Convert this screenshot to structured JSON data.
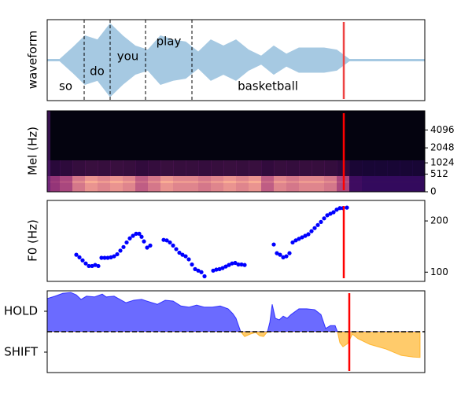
{
  "chart_data": [
    {
      "type": "waveform",
      "ylabel": "waveform",
      "xlim": [
        0,
        480
      ],
      "ylim": [
        -1,
        1
      ],
      "color": "#a6c9e2",
      "x": [
        0,
        16,
        32,
        48,
        64,
        80,
        96,
        112,
        128,
        144,
        160,
        176,
        192,
        208,
        224,
        240,
        256,
        272,
        288,
        304,
        320,
        336,
        352,
        368,
        384,
        400,
        416,
        432,
        448,
        464,
        480
      ],
      "values": [
        0.02,
        0.02,
        0.3,
        0.6,
        0.5,
        0.9,
        0.6,
        0.35,
        0.25,
        0.6,
        0.5,
        0.45,
        0.2,
        0.5,
        0.35,
        0.5,
        0.25,
        0.1,
        0.35,
        0.15,
        0.3,
        0.3,
        0.3,
        0.25,
        0.02,
        0.02,
        0.02,
        0.02,
        0.02,
        0.02,
        0.02
      ],
      "words": [
        {
          "text": "so",
          "start": 0,
          "end": 47
        },
        {
          "text": "do",
          "start": 47,
          "end": 80
        },
        {
          "text": "you",
          "start": 80,
          "end": 125
        },
        {
          "text": "play",
          "start": 125,
          "end": 184
        },
        {
          "text": "basketball",
          "start": 184,
          "end": 377
        }
      ],
      "cursor": 377,
      "cursor_color": "#ee4444"
    },
    {
      "type": "spectrogram",
      "ylabel": "Mel (Hz)",
      "xlim": [
        0,
        480
      ],
      "ylim": [
        0,
        8000
      ],
      "yscale": "mel",
      "yticks": [
        0,
        512,
        1024,
        2048,
        4096
      ],
      "x": [
        0,
        16,
        32,
        48,
        64,
        80,
        96,
        112,
        128,
        144,
        160,
        176,
        192,
        208,
        224,
        240,
        256,
        272,
        288,
        304,
        320,
        336,
        352,
        368,
        384,
        400,
        416,
        432,
        448,
        464
      ],
      "values": [
        0.5,
        0.6,
        0.8,
        0.9,
        0.85,
        0.9,
        0.85,
        0.7,
        0.8,
        0.9,
        0.85,
        0.85,
        0.8,
        0.85,
        0.9,
        0.85,
        0.9,
        0.7,
        0.85,
        0.8,
        0.85,
        0.85,
        0.8,
        0.6,
        0.1,
        0.05,
        0.05,
        0.05,
        0.05,
        0.05
      ],
      "cursor": 377,
      "cursor_color": "#ff0000"
    },
    {
      "type": "scatter",
      "ylabel": "F0 (Hz)",
      "xlim": [
        0,
        480
      ],
      "ylim": [
        82,
        240
      ],
      "yticks": [
        100,
        200
      ],
      "color": "#0000ff",
      "x": [
        37,
        41,
        45,
        49,
        53,
        57,
        61,
        65,
        69,
        73,
        77,
        81,
        85,
        89,
        93,
        97,
        101,
        105,
        109,
        113,
        117,
        120,
        123,
        127,
        131,
        148,
        152,
        156,
        160,
        164,
        168,
        172,
        176,
        180,
        184,
        188,
        192,
        196,
        200,
        211,
        215,
        219,
        223,
        227,
        231,
        235,
        239,
        243,
        247,
        251,
        288,
        292,
        296,
        300,
        304,
        308,
        312,
        316,
        320,
        324,
        328,
        332,
        336,
        340,
        344,
        348,
        352,
        356,
        360,
        364,
        368,
        372,
        376,
        381
      ],
      "values": [
        134,
        129,
        123,
        117,
        112,
        112,
        114,
        112,
        128,
        128,
        128,
        129,
        131,
        135,
        142,
        149,
        158,
        166,
        171,
        175,
        175,
        169,
        160,
        148,
        152,
        163,
        162,
        158,
        152,
        145,
        138,
        134,
        131,
        125,
        115,
        106,
        103,
        100,
        92,
        103,
        105,
        106,
        108,
        111,
        114,
        117,
        118,
        115,
        115,
        114,
        154,
        137,
        134,
        129,
        131,
        137,
        158,
        162,
        165,
        168,
        171,
        174,
        180,
        186,
        192,
        198,
        205,
        211,
        214,
        217,
        222,
        225,
        225,
        226
      ],
      "cursor": 377,
      "cursor_color": "#ff0000"
    },
    {
      "type": "area",
      "xlim": [
        0,
        480
      ],
      "ylim": [
        -1,
        1
      ],
      "yticks": [
        {
          "value": 0.5,
          "label": "HOLD"
        },
        {
          "value": -0.5,
          "label": "SHIFT"
        }
      ],
      "pos_color": "#0000ff",
      "neg_color": "#ffa500",
      "x": [
        0,
        10,
        20,
        30,
        37,
        43,
        50,
        60,
        70,
        75,
        85,
        100,
        110,
        120,
        130,
        140,
        150,
        160,
        170,
        180,
        190,
        200,
        210,
        220,
        230,
        236,
        240,
        246,
        251,
        258,
        265,
        270,
        275,
        280,
        283,
        286,
        290,
        295,
        300,
        305,
        310,
        320,
        330,
        340,
        348,
        354,
        360,
        366,
        369,
        372,
        376,
        382,
        388,
        395,
        410,
        430,
        450,
        465,
        474
      ],
      "values": [
        0.81,
        0.87,
        0.94,
        0.96,
        0.9,
        0.79,
        0.87,
        0.85,
        0.92,
        0.85,
        0.87,
        0.71,
        0.77,
        0.79,
        0.73,
        0.67,
        0.77,
        0.75,
        0.63,
        0.6,
        0.65,
        0.6,
        0.6,
        0.63,
        0.56,
        0.44,
        0.33,
        0,
        -0.12,
        -0.06,
        -0.02,
        -0.1,
        -0.12,
        0,
        0.23,
        0.67,
        0.33,
        0.29,
        0.38,
        0.33,
        0.42,
        0.56,
        0.56,
        0.54,
        0.42,
        0.08,
        0.15,
        0.15,
        0,
        -0.27,
        -0.37,
        -0.29,
        -0.06,
        -0.17,
        -0.31,
        -0.42,
        -0.58,
        -0.62,
        -0.63
      ],
      "cursor": 384,
      "cursor_color": "#ff0000"
    }
  ]
}
